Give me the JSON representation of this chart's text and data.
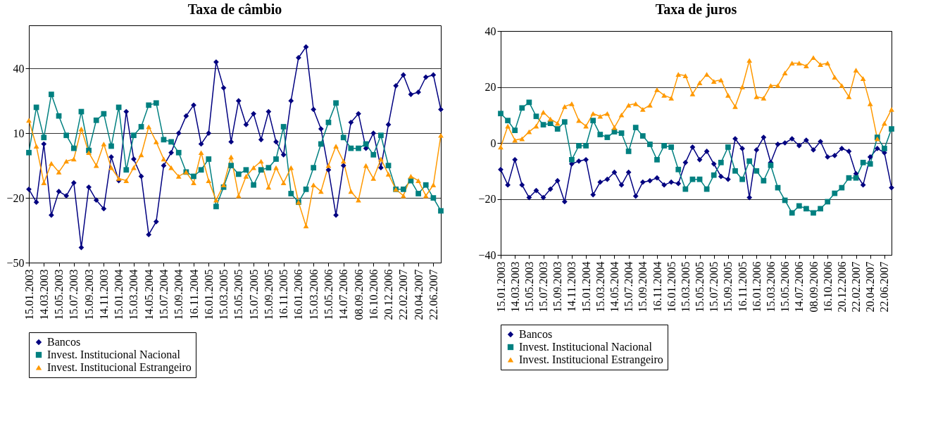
{
  "chart_data": [
    {
      "type": "line",
      "title": "Taxa de câmbio",
      "categories": [
        "15.01.2003",
        null,
        "14.03.2003",
        null,
        "15.05.2003",
        null,
        "15.07.2003",
        null,
        "15.09.2003",
        null,
        "14.11.2003",
        null,
        "15.01.2004",
        null,
        "15.03.2004",
        null,
        "14.05.2004",
        null,
        "15.07.2004",
        null,
        "15.09.2004",
        null,
        "16.11.2004",
        null,
        "16.01.2005",
        null,
        "15.03.2005",
        null,
        "15.05.2005",
        null,
        "15.07.2005",
        null,
        "15.09.2005",
        null,
        "16.11.2005",
        null,
        "16.01.2006",
        null,
        "15.03.2006",
        null,
        "15.05.2006",
        null,
        "14.07.2006",
        null,
        "08.09.2006",
        null,
        "16.10.2006",
        null,
        "20.12.2006",
        null,
        "22.02.2007",
        null,
        "20.04.2007",
        null,
        "22.06.2007",
        null
      ],
      "series": [
        {
          "name": "Bancos",
          "color": "#000080",
          "marker": "diamond",
          "values": [
            -16,
            -22,
            5,
            -28,
            -17,
            -19,
            -13,
            -43,
            -15,
            -21,
            -25,
            -1,
            -12,
            20,
            -2,
            -10,
            -37,
            -31,
            -5,
            1,
            10,
            18,
            23,
            5,
            10,
            43,
            31,
            6,
            25,
            14,
            19,
            7,
            20,
            6,
            0,
            25,
            45,
            50,
            21,
            12,
            -7,
            -28,
            -5,
            15,
            19,
            3,
            10,
            -6,
            14,
            32,
            37,
            28,
            29,
            36,
            37,
            21
          ]
        },
        {
          "name": "Invest. Institucional Nacional",
          "color": "#008080",
          "marker": "square",
          "values": [
            1,
            22,
            8,
            28,
            18,
            9,
            3,
            20,
            2,
            16,
            19,
            4,
            22,
            -7,
            9,
            13,
            23,
            24,
            7,
            6,
            1,
            -8,
            -10,
            -7,
            -2,
            -24,
            -15,
            -5,
            -9,
            -7,
            -14,
            -7,
            -6,
            -2,
            13,
            -18,
            -22,
            -16,
            -6,
            5,
            15,
            24,
            8,
            3,
            3,
            5,
            0,
            9,
            -5,
            -16,
            -16,
            -12,
            -18,
            -14,
            -20,
            -26
          ]
        },
        {
          "name": "Invest. Institucional Estrangeiro",
          "color": "#ff9900",
          "marker": "triangle",
          "values": [
            16,
            4,
            -13,
            -4,
            -8,
            -3,
            -2,
            12,
            1,
            -5,
            5,
            -6,
            -11,
            -12,
            -6,
            0,
            13,
            6,
            -2,
            -6,
            -10,
            -8,
            -13,
            1,
            -12,
            -21,
            -14,
            -1,
            -19,
            -10,
            -6,
            -3,
            -15,
            -6,
            -13,
            -6,
            -22,
            -33,
            -14,
            -17,
            -5,
            4,
            -3,
            -17,
            -21,
            -5,
            -11,
            -2,
            -9,
            -16,
            -19,
            -10,
            -12,
            -19,
            -14,
            9
          ]
        }
      ],
      "ylim": [
        -50,
        60
      ],
      "yticks": [
        -50,
        -20,
        10,
        40
      ],
      "grid": "y",
      "legend": "bottom"
    },
    {
      "type": "line",
      "title": "Taxa de juros",
      "categories": [
        "15.01.2003",
        null,
        "14.03.2003",
        null,
        "15.05.2003",
        null,
        "15.07.2003",
        null,
        "15.09.2003",
        null,
        "14.11.2003",
        null,
        "15.01.2004",
        null,
        "15.03.2004",
        null,
        "14.05.2004",
        null,
        "15.07.2004",
        null,
        "15.09.2004",
        null,
        "16.11.2004",
        null,
        "16.01.2005",
        null,
        "15.03.2005",
        null,
        "15.05.2005",
        null,
        "15.07.2005",
        null,
        "15.09.2005",
        null,
        "16.11.2005",
        null,
        "16.01.2006",
        null,
        "15.03.2006",
        null,
        "15.05.2006",
        null,
        "14.07.2006",
        null,
        "08.09.2006",
        null,
        "16.10.2006",
        null,
        "20.12.2006",
        null,
        "22.02.2007",
        null,
        "20.04.2007",
        null,
        "22.06.2007",
        null
      ],
      "series": [
        {
          "name": "Bancos",
          "color": "#000080",
          "marker": "diamond",
          "values": [
            -9.5,
            -15,
            -6,
            -15,
            -19.5,
            -17,
            -19.5,
            -16.5,
            -13.5,
            -21,
            -7.5,
            -6.5,
            -6,
            -18.5,
            -14,
            -13,
            -10.5,
            -15,
            -10.5,
            -19,
            -14,
            -13.5,
            -12.5,
            -15,
            -14,
            -14.5,
            -7,
            -1.5,
            -6,
            -3,
            -7.5,
            -12,
            -13,
            1.5,
            -2,
            -19.5,
            -2.5,
            2,
            -7,
            -0.5,
            0,
            1.5,
            -1,
            1,
            -2.5,
            0.5,
            -5,
            -4.5,
            -2,
            -3,
            -11,
            -15,
            -5,
            -2,
            -3.5,
            -16
          ]
        },
        {
          "name": "Invest. Institucional Nacional",
          "color": "#008080",
          "marker": "square",
          "values": [
            10.5,
            8,
            4.5,
            12.5,
            14.5,
            9.5,
            6.5,
            7,
            5,
            7.5,
            -6,
            -1,
            -1,
            8,
            3,
            2,
            4,
            3.5,
            -3,
            5.5,
            2.5,
            -0.5,
            -6,
            -1,
            -1.5,
            -9.5,
            -16.5,
            -13,
            -13,
            -16.5,
            -11.5,
            -7,
            -1.5,
            -10,
            -13,
            -6.5,
            -10,
            -13.5,
            -8,
            -16,
            -20.5,
            -25,
            -22.5,
            -23.5,
            -25,
            -23.5,
            -21,
            -18,
            -16,
            -12.5,
            -12.5,
            -7,
            -7.5,
            2,
            -2,
            5
          ]
        },
        {
          "name": "Invest. Institucional Estrangeiro",
          "color": "#ff9900",
          "marker": "triangle",
          "values": [
            -1.5,
            6,
            1,
            1.5,
            4,
            6,
            11,
            8.5,
            7,
            13,
            14,
            8,
            6,
            10.5,
            9.5,
            10.5,
            5.5,
            10,
            13.5,
            14,
            12,
            13.5,
            19,
            17,
            16,
            24.5,
            24,
            17.5,
            21.5,
            24.5,
            22,
            22.5,
            17,
            13,
            20,
            29.5,
            16.5,
            16,
            20.5,
            20.5,
            25,
            28.5,
            28.5,
            27.5,
            30.5,
            28,
            28.5,
            23.5,
            20.5,
            16.5,
            26,
            23,
            14,
            1.5,
            7,
            12
          ]
        }
      ],
      "ylim": [
        -40,
        40
      ],
      "yticks": [
        -40,
        -20,
        0,
        20,
        40
      ],
      "grid": "y",
      "legend": "bottom"
    }
  ]
}
